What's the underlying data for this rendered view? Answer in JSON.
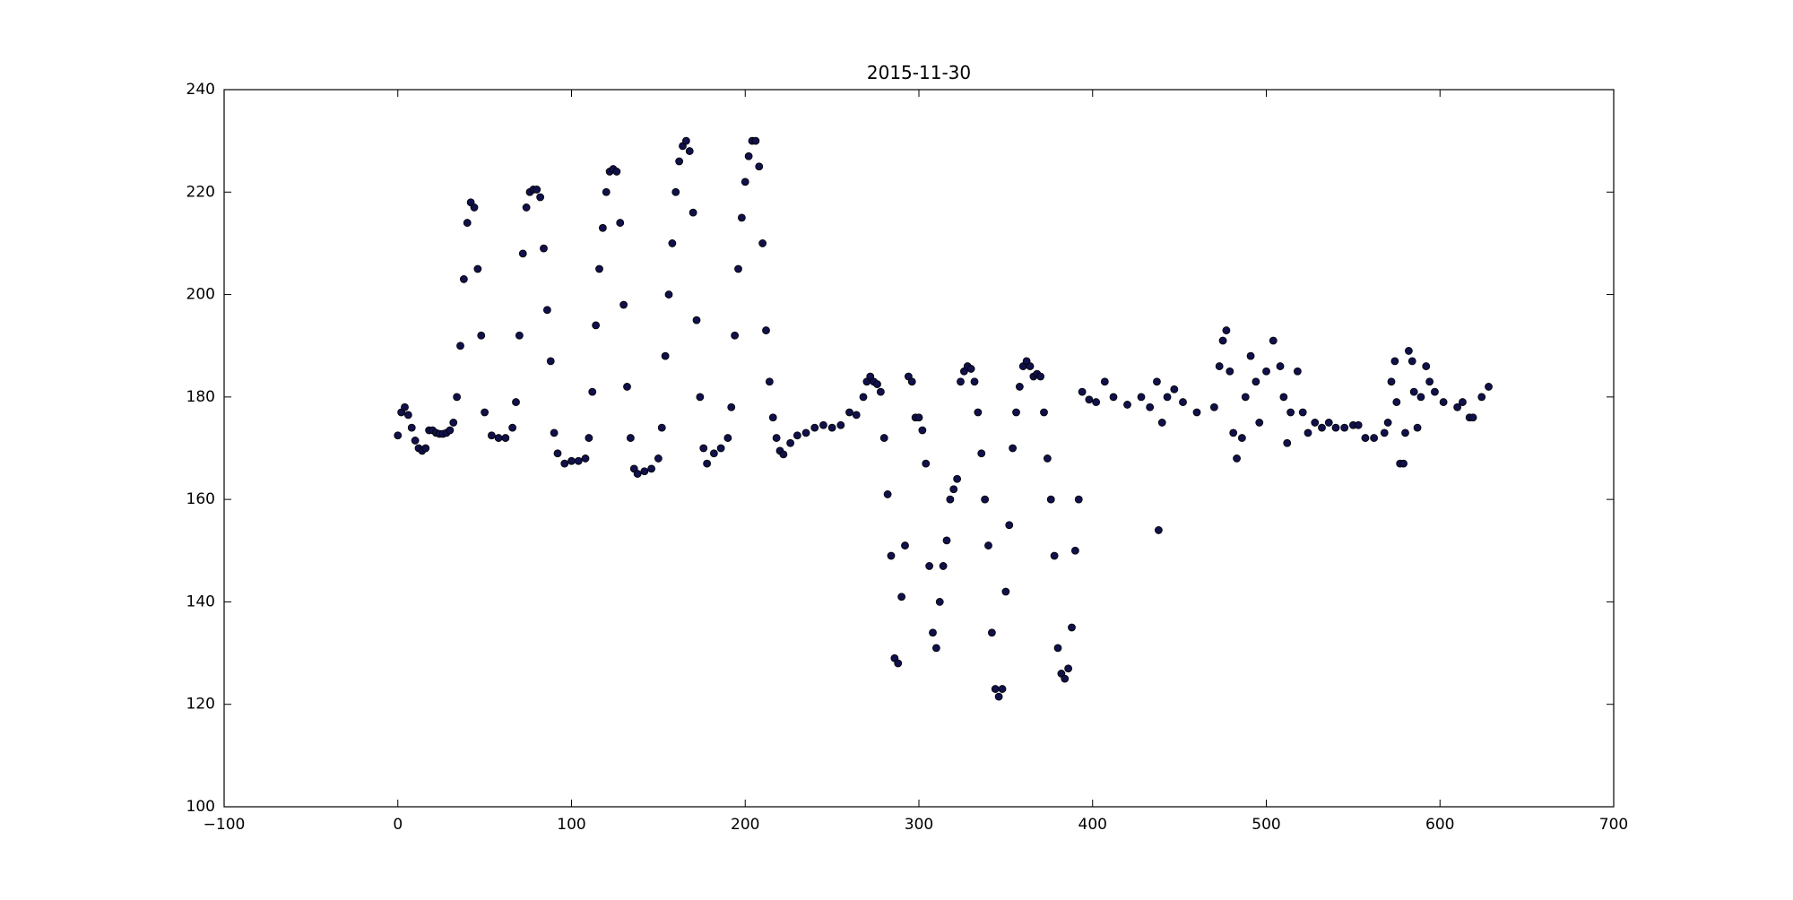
{
  "chart_data": {
    "type": "scatter",
    "title": "2015-11-30",
    "x": [
      0,
      2,
      4,
      6,
      8,
      10,
      12,
      14,
      16,
      18,
      20,
      22,
      24,
      26,
      28,
      30,
      32,
      34,
      36,
      38,
      40,
      42,
      44,
      46,
      48,
      50,
      54,
      58,
      62,
      66,
      68,
      70,
      72,
      74,
      76,
      78,
      80,
      82,
      84,
      86,
      88,
      90,
      92,
      96,
      100,
      104,
      108,
      110,
      112,
      114,
      116,
      118,
      120,
      122,
      124,
      126,
      128,
      130,
      132,
      134,
      136,
      138,
      142,
      146,
      150,
      152,
      154,
      156,
      158,
      160,
      162,
      164,
      166,
      168,
      170,
      172,
      174,
      176,
      178,
      182,
      186,
      190,
      192,
      194,
      196,
      198,
      200,
      202,
      204,
      206,
      208,
      210,
      212,
      214,
      216,
      218,
      220,
      222,
      226,
      230,
      235,
      240,
      245,
      250,
      255,
      260,
      264,
      268,
      270,
      272,
      274,
      276,
      278,
      280,
      282,
      284,
      286,
      288,
      290,
      292,
      294,
      296,
      298,
      300,
      302,
      304,
      306,
      308,
      310,
      312,
      314,
      316,
      318,
      320,
      322,
      324,
      326,
      328,
      330,
      332,
      334,
      336,
      338,
      340,
      342,
      344,
      346,
      348,
      350,
      352,
      354,
      356,
      358,
      360,
      362,
      364,
      366,
      368,
      370,
      372,
      374,
      376,
      378,
      380,
      382,
      384,
      386,
      388,
      390,
      392,
      394,
      398,
      402,
      407,
      412,
      420,
      428,
      433,
      437,
      438,
      440,
      443,
      447,
      452,
      460,
      470,
      473,
      475,
      477,
      479,
      481,
      483,
      486,
      488,
      491,
      494,
      496,
      500,
      504,
      508,
      510,
      512,
      514,
      518,
      521,
      524,
      528,
      532,
      536,
      540,
      545,
      550,
      553,
      557,
      562,
      568,
      570,
      572,
      574,
      575,
      577,
      579,
      580,
      582,
      584,
      585,
      587,
      589,
      592,
      594,
      597,
      602,
      610,
      613,
      617,
      619,
      624,
      628
    ],
    "values": [
      172.5,
      177,
      178,
      176.5,
      174,
      171.5,
      170,
      169.5,
      170,
      173.5,
      173.5,
      173,
      172.8,
      172.8,
      173,
      173.5,
      175,
      180,
      190,
      203,
      214,
      218,
      217,
      205,
      192,
      177,
      172.5,
      172,
      172,
      174,
      179,
      192,
      208,
      217,
      220,
      220.5,
      220.5,
      219,
      209,
      197,
      187,
      173,
      169,
      167,
      167.5,
      167.5,
      168,
      172,
      181,
      194,
      205,
      213,
      220,
      224,
      224.5,
      224,
      214,
      198,
      182,
      172,
      166,
      165,
      165.5,
      166,
      168,
      174,
      188,
      200,
      210,
      220,
      226,
      229,
      230,
      228,
      216,
      195,
      180,
      170,
      167,
      169,
      170,
      172,
      178,
      192,
      205,
      215,
      222,
      227,
      230,
      230,
      225,
      210,
      193,
      183,
      176,
      172,
      169.5,
      168.8,
      171,
      172.5,
      173,
      174,
      174.5,
      174,
      174.5,
      177,
      176.5,
      180,
      183,
      184,
      183,
      182.5,
      181,
      172,
      161,
      149,
      129,
      128,
      141,
      151,
      184,
      183,
      176,
      176,
      173.5,
      167,
      147,
      134,
      131,
      140,
      147,
      152,
      160,
      162,
      164,
      183,
      185,
      186,
      185.5,
      183,
      177,
      169,
      160,
      151,
      134,
      123,
      121.5,
      123,
      142,
      155,
      170,
      177,
      182,
      186,
      187,
      186,
      184,
      184.5,
      184,
      177,
      168,
      160,
      149,
      131,
      126,
      125,
      127,
      135,
      150,
      160,
      181,
      179.5,
      179,
      183,
      180,
      178.5,
      180,
      178,
      183,
      154,
      175,
      180,
      181.5,
      179,
      177,
      178,
      186,
      191,
      193,
      185,
      173,
      168,
      172,
      180,
      188,
      183,
      175,
      185,
      191,
      186,
      180,
      171,
      177,
      185,
      177,
      173,
      175,
      174,
      175,
      174,
      174,
      174.5,
      174.5,
      172,
      172,
      173,
      175,
      183,
      187,
      179,
      167,
      167,
      173,
      189,
      187,
      181,
      174,
      180,
      186,
      183,
      181,
      179,
      178,
      179,
      176,
      176,
      180,
      182
    ],
    "color": "#10104a",
    "xlim": [
      -100,
      700
    ],
    "xticks": [
      {
        "value": -100,
        "label": "−100"
      },
      0,
      100,
      200,
      300,
      400,
      500,
      600,
      700
    ],
    "ylim": [
      100,
      240
    ],
    "yticks": [
      100,
      120,
      140,
      160,
      180,
      200,
      220,
      240
    ]
  }
}
